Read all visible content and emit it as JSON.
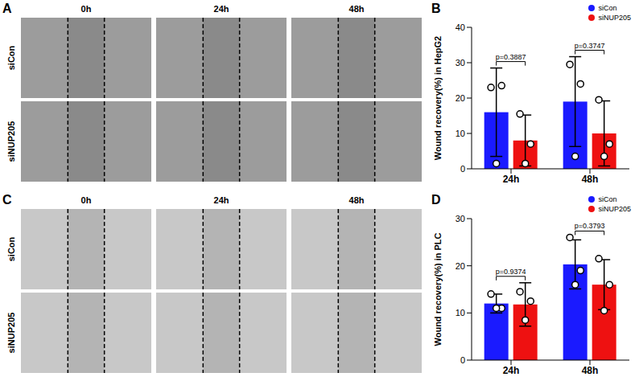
{
  "image_panels": [
    {
      "label": "A",
      "columns": [
        "0h",
        "24h",
        "48h"
      ],
      "rows": [
        "siCon",
        "siNUP205"
      ]
    },
    {
      "label": "C",
      "columns": [
        "0h",
        "24h",
        "48h"
      ],
      "rows": [
        "siCon",
        "siNUP205"
      ]
    }
  ],
  "chart_labels": [
    "B",
    "D"
  ],
  "chart_data": [
    {
      "type": "bar",
      "y_label": "Wound recovery(%) in HepG2",
      "categories": [
        "24h",
        "48h"
      ],
      "series": [
        {
          "name": "siCon",
          "color": "#1a1aff",
          "values": [
            16,
            19
          ],
          "errors": [
            12.5,
            12.7
          ],
          "points": [
            [
              23,
              23.5,
              1.5
            ],
            [
              29.5,
              24,
              3.5
            ]
          ]
        },
        {
          "name": "siNUP205",
          "color": "#ee1111",
          "values": [
            8,
            10
          ],
          "errors": [
            7.2,
            9.2
          ],
          "points": [
            [
              15.5,
              7,
              1.5
            ],
            [
              19.5,
              7,
              3.5
            ]
          ]
        }
      ],
      "p_values": [
        "p=0.3887",
        "p=0.3747"
      ],
      "ylim": [
        0,
        40
      ],
      "yticks": [
        0,
        10,
        20,
        30,
        40
      ],
      "legend": "top right"
    },
    {
      "type": "bar",
      "y_label": "Wound recovery(%) in PLC",
      "categories": [
        "24h",
        "48h"
      ],
      "series": [
        {
          "name": "siCon",
          "color": "#1a1aff",
          "values": [
            12,
            20.3
          ],
          "errors": [
            2,
            5.2
          ],
          "points": [
            [
              14,
              11,
              11
            ],
            [
              26,
              19,
              16
            ]
          ]
        },
        {
          "name": "siNUP205",
          "color": "#ee1111",
          "values": [
            11.8,
            16
          ],
          "errors": [
            4.6,
            5.3
          ],
          "points": [
            [
              14.5,
              12.5,
              8.5
            ],
            [
              21.5,
              16,
              10.5
            ]
          ]
        }
      ],
      "p_values": [
        "p=0.9374",
        "p=0.3793"
      ],
      "ylim": [
        0,
        30
      ],
      "yticks": [
        0,
        10,
        20,
        30
      ],
      "legend": "top right"
    }
  ]
}
